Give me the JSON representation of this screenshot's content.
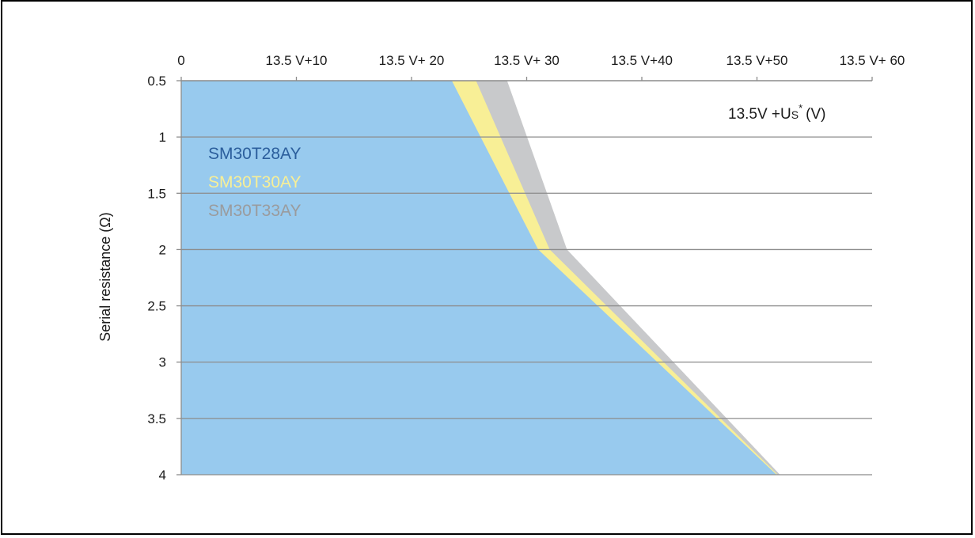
{
  "chart_data": {
    "type": "area",
    "title": "",
    "xlabel": "",
    "ylabel": "Serial resistance (Ω)",
    "x_axis_position": "top",
    "y_axis_inverted": true,
    "unit_label": {
      "prefix": "13.5V +U",
      "sub": "S",
      "sup": "*",
      "suffix": "(V)"
    },
    "xlim": [
      0,
      60
    ],
    "ylim": [
      0.5,
      4
    ],
    "xticks": [
      0,
      10,
      20,
      30,
      40,
      50,
      60
    ],
    "xtick_labels": [
      "0",
      "13.5 V+10",
      "13.5 V+ 20",
      "13.5 V+ 30",
      "13.5 V+40",
      "13.5 V+50",
      "13.5 V+ 60"
    ],
    "yticks": [
      0.5,
      1,
      1.5,
      2,
      2.5,
      3,
      3.5,
      4
    ],
    "ytick_labels": [
      "0.5",
      "1",
      "1.5",
      "2",
      "2.5",
      "3",
      "3.5",
      "4"
    ],
    "grid": "horizontal",
    "legend_position": "upper-left",
    "series": [
      {
        "name": "SM30T33AY",
        "color": "#c8c9cb",
        "boundary": [
          [
            28.3,
            0.5
          ],
          [
            33.5,
            2.0
          ],
          [
            52.0,
            4.0
          ]
        ]
      },
      {
        "name": "SM30T30AY",
        "color": "#f8ef96",
        "boundary": [
          [
            25.6,
            0.5
          ],
          [
            32.0,
            2.0
          ],
          [
            51.8,
            4.0
          ]
        ]
      },
      {
        "name": "SM30T28AY",
        "color": "#98caee",
        "label_color": "#2b5e9c",
        "boundary": [
          [
            23.5,
            0.5
          ],
          [
            31.0,
            2.0
          ],
          [
            51.7,
            4.0
          ]
        ]
      }
    ]
  }
}
